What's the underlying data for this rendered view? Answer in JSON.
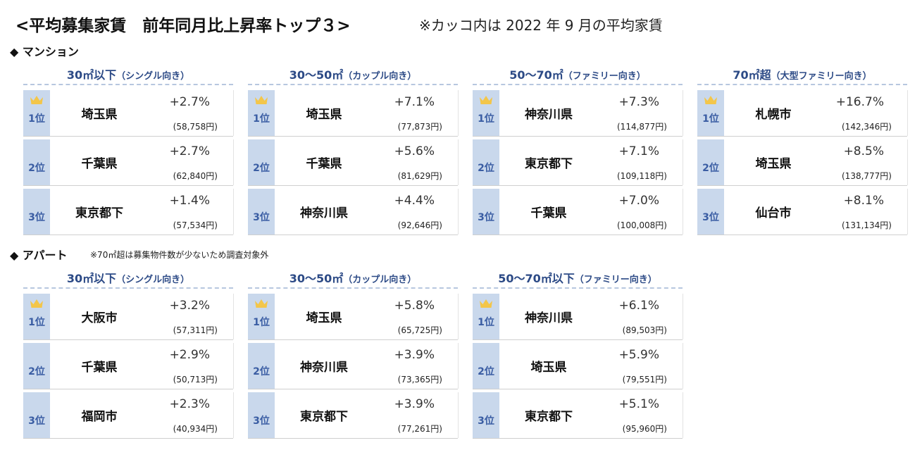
{
  "title": "<平均募集家賃　前年同月比上昇率トップ３>",
  "note": "※カッコ内は 2022 年 9 月の平均家賃",
  "sections": [
    {
      "label": "◆ マンション",
      "columns": [
        {
          "size": "30㎡以下",
          "audience": "（シングル向き）",
          "rows": [
            {
              "rank": "1位",
              "name": "埼玉県",
              "change": "+2.7%",
              "rent": "(58,758円)"
            },
            {
              "rank": "2位",
              "name": "千葉県",
              "change": "+2.7%",
              "rent": "(62,840円)"
            },
            {
              "rank": "3位",
              "name": "東京都下",
              "change": "+1.4%",
              "rent": "(57,534円)"
            }
          ]
        },
        {
          "size": "30～50㎡",
          "audience": "（カップル向き）",
          "rows": [
            {
              "rank": "1位",
              "name": "埼玉県",
              "change": "+7.1%",
              "rent": "(77,873円)"
            },
            {
              "rank": "2位",
              "name": "千葉県",
              "change": "+5.6%",
              "rent": "(81,629円)"
            },
            {
              "rank": "3位",
              "name": "神奈川県",
              "change": "+4.4%",
              "rent": "(92,646円)"
            }
          ]
        },
        {
          "size": "50～70㎡",
          "audience": "（ファミリー向き）",
          "rows": [
            {
              "rank": "1位",
              "name": "神奈川県",
              "change": "+7.3%",
              "rent": "(114,877円)"
            },
            {
              "rank": "2位",
              "name": "東京都下",
              "change": "+7.1%",
              "rent": "(109,118円)"
            },
            {
              "rank": "3位",
              "name": "千葉県",
              "change": "+7.0%",
              "rent": "(100,008円)"
            }
          ]
        },
        {
          "size": "70㎡超",
          "audience": "（大型ファミリー向き）",
          "rows": [
            {
              "rank": "1位",
              "name": "札幌市",
              "change": "+16.7%",
              "rent": "(142,346円)"
            },
            {
              "rank": "2位",
              "name": "埼玉県",
              "change": "+8.5%",
              "rent": "(138,777円)"
            },
            {
              "rank": "3位",
              "name": "仙台市",
              "change": "+8.1%",
              "rent": "(131,134円)"
            }
          ]
        }
      ]
    },
    {
      "label": "◆ アパート",
      "note": "※70㎡超は募集物件数が少ないため調査対象外",
      "columns": [
        {
          "size": "30㎡以下",
          "audience": "（シングル向き）",
          "rows": [
            {
              "rank": "1位",
              "name": "大阪市",
              "change": "+3.2%",
              "rent": "(57,311円)"
            },
            {
              "rank": "2位",
              "name": "千葉県",
              "change": "+2.9%",
              "rent": "(50,713円)"
            },
            {
              "rank": "3位",
              "name": "福岡市",
              "change": "+2.3%",
              "rent": "(40,934円)"
            }
          ]
        },
        {
          "size": "30～50㎡",
          "audience": "（カップル向き）",
          "rows": [
            {
              "rank": "1位",
              "name": "埼玉県",
              "change": "+5.8%",
              "rent": "(65,725円)"
            },
            {
              "rank": "2位",
              "name": "神奈川県",
              "change": "+3.9%",
              "rent": "(73,365円)"
            },
            {
              "rank": "3位",
              "name": "東京都下",
              "change": "+3.9%",
              "rent": "(77,261円)"
            }
          ]
        },
        {
          "size": "50～70㎡以下",
          "audience": "（ファミリー向き）",
          "rows": [
            {
              "rank": "1位",
              "name": "神奈川県",
              "change": "+6.1%",
              "rent": "(89,503円)"
            },
            {
              "rank": "2位",
              "name": "埼玉県",
              "change": "+5.9%",
              "rent": "(79,551円)"
            },
            {
              "rank": "3位",
              "name": "東京都下",
              "change": "+5.1%",
              "rent": "(95,960円)"
            }
          ]
        }
      ]
    }
  ]
}
